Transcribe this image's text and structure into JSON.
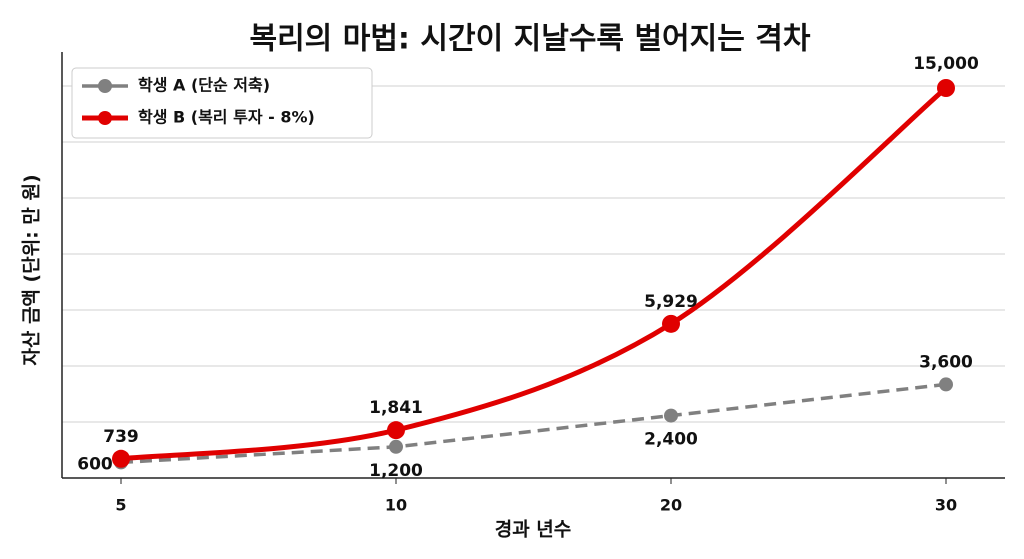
{
  "chart_data": {
    "type": "line",
    "title": "복리의 마법: 시간이 지날수록 벌어지는 격차",
    "x_label": "경과 년수",
    "y_label": "자산 금액 (단위: 만 원)",
    "categories": [
      "5",
      "10",
      "20",
      "30"
    ],
    "series": [
      {
        "name": "학생 A (단순 저축)",
        "color": "#808080",
        "dashed": true,
        "values": [
          600,
          1200,
          2400,
          3600
        ],
        "value_labels": [
          "600",
          "1,200",
          "2,400",
          "3,600"
        ]
      },
      {
        "name": "학생 B (복리 투자 - 8%)",
        "color": "#e00000",
        "dashed": false,
        "values": [
          739,
          1841,
          5929,
          15000
        ],
        "value_labels": [
          "739",
          "1,841",
          "5,929",
          "15,000"
        ]
      }
    ],
    "ylim": [
      0,
      16000
    ],
    "grid": true,
    "legend": "upper left"
  }
}
